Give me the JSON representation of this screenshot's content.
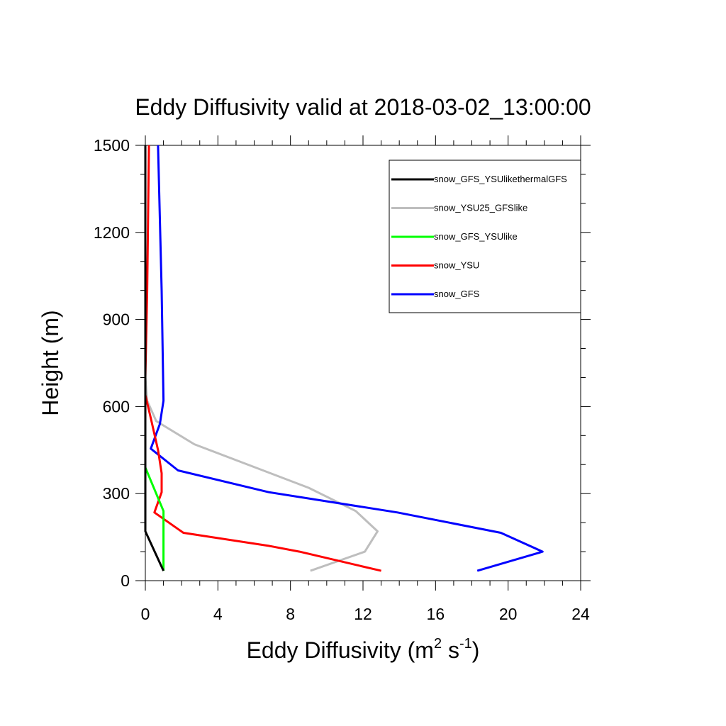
{
  "chart_data": {
    "type": "line",
    "title": "Eddy Diffusivity valid at 2018-03-02_13:00:00",
    "xlabel": {
      "base": "Eddy Diffusivity (m",
      "sup1": "2",
      "mid": " s",
      "sup2": "-1",
      "end": ")"
    },
    "ylabel": "Height (m)",
    "xlim": [
      0,
      24
    ],
    "ylim": [
      0,
      1500
    ],
    "xticks": [
      "0",
      "4",
      "8",
      "12",
      "16",
      "20",
      "24"
    ],
    "yticks": [
      "0",
      "300",
      "600",
      "900",
      "1200",
      "1500"
    ],
    "xtick_values": [
      0,
      4,
      8,
      12,
      16,
      20,
      24
    ],
    "ytick_values": [
      0,
      300,
      600,
      900,
      1200,
      1500
    ],
    "legend_position": "top-right",
    "series": [
      {
        "name": "snow_GFS_YSUlikethermalGFS",
        "color": "#000000",
        "points": [
          [
            1.0,
            34
          ],
          [
            0.0,
            170
          ],
          [
            0.0,
            250
          ],
          [
            0.0,
            600
          ],
          [
            0.0,
            900
          ],
          [
            0.0,
            1200
          ],
          [
            0.0,
            1500
          ]
        ]
      },
      {
        "name": "snow_YSU25_GFSlike",
        "color": "#bebebe",
        "points": [
          [
            9.1,
            34
          ],
          [
            12.1,
            100
          ],
          [
            12.8,
            170
          ],
          [
            11.6,
            240
          ],
          [
            9.0,
            320
          ],
          [
            2.7,
            470
          ],
          [
            0.6,
            550
          ],
          [
            0.1,
            620
          ],
          [
            0.0,
            700
          ],
          [
            0.0,
            1500
          ]
        ]
      },
      {
        "name": "snow_GFS_YSUlike",
        "color": "#00ff00",
        "points": [
          [
            1.0,
            34
          ],
          [
            1.0,
            100
          ],
          [
            1.0,
            170
          ],
          [
            1.0,
            240
          ],
          [
            0.0,
            390
          ],
          [
            0.0,
            600
          ],
          [
            0.0,
            1200
          ],
          [
            0.0,
            1500
          ]
        ]
      },
      {
        "name": "snow_YSU",
        "color": "#ff0000",
        "points": [
          [
            13.0,
            34
          ],
          [
            8.5,
            100
          ],
          [
            6.8,
            120
          ],
          [
            2.1,
            165
          ],
          [
            0.5,
            235
          ],
          [
            0.9,
            305
          ],
          [
            0.9,
            370
          ],
          [
            0.7,
            450
          ],
          [
            0.3,
            560
          ],
          [
            0.0,
            640
          ],
          [
            0.0,
            700
          ],
          [
            0.1,
            1000
          ],
          [
            0.2,
            1500
          ]
        ]
      },
      {
        "name": "snow_GFS",
        "color": "#0000ff",
        "points": [
          [
            18.3,
            34
          ],
          [
            21.9,
            100
          ],
          [
            19.6,
            165
          ],
          [
            13.9,
            235
          ],
          [
            6.8,
            305
          ],
          [
            1.8,
            380
          ],
          [
            0.3,
            455
          ],
          [
            0.8,
            540
          ],
          [
            1.0,
            620
          ],
          [
            0.9,
            1000
          ],
          [
            0.7,
            1500
          ]
        ]
      }
    ]
  }
}
